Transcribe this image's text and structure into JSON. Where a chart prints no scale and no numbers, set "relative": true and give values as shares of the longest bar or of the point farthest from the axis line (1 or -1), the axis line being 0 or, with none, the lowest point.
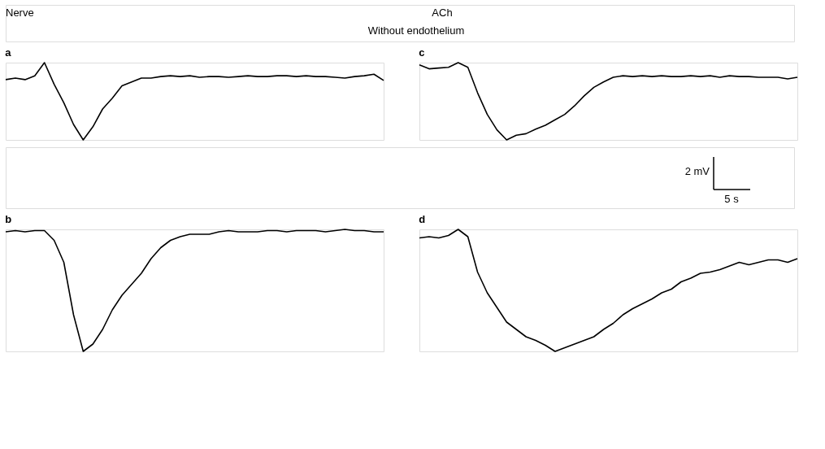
{
  "chart_data": [
    {
      "type": "line",
      "title": "a",
      "relative": true,
      "annotations": [
        "Nerve"
      ],
      "categories": [
        null,
        null,
        null,
        null,
        null,
        null,
        null,
        null,
        null,
        null,
        null,
        null,
        null,
        null,
        null,
        null,
        null,
        null,
        null,
        null,
        null,
        null,
        null,
        null,
        null,
        null,
        null,
        null,
        null,
        null,
        null,
        null,
        null,
        null,
        null,
        null,
        null,
        null,
        null,
        null
      ],
      "series": [
        {
          "color": "#000000",
          "values": [
            0.78,
            0.8,
            0.78,
            0.83,
            1.0,
            0.72,
            0.48,
            0.2,
            0.0,
            0.17,
            0.4,
            0.54,
            0.7,
            0.75,
            0.8,
            0.8,
            0.82,
            0.83,
            0.82,
            0.83,
            0.81,
            0.82,
            0.82,
            0.81,
            0.82,
            0.83,
            0.82,
            0.82,
            0.83,
            0.83,
            0.82,
            0.83,
            0.82,
            0.82,
            0.81,
            0.8,
            0.82,
            0.83,
            0.85,
            0.77
          ]
        }
      ]
    },
    {
      "type": "line",
      "title": "c",
      "relative": true,
      "annotations": [
        "ACh",
        "Without endothelium",
        "2 mV",
        "5 s"
      ],
      "categories": [
        null,
        null,
        null,
        null,
        null,
        null,
        null,
        null,
        null,
        null,
        null,
        null,
        null,
        null,
        null,
        null,
        null,
        null,
        null,
        null,
        null,
        null,
        null,
        null,
        null,
        null,
        null,
        null,
        null,
        null,
        null,
        null,
        null,
        null,
        null,
        null,
        null,
        null,
        null,
        null
      ],
      "series": [
        {
          "color": "#000000",
          "values": [
            0.97,
            0.92,
            0.93,
            0.94,
            1.0,
            0.94,
            0.61,
            0.33,
            0.13,
            0.0,
            0.06,
            0.08,
            0.14,
            0.19,
            0.26,
            0.33,
            0.44,
            0.57,
            0.68,
            0.75,
            0.81,
            0.83,
            0.82,
            0.83,
            0.82,
            0.83,
            0.82,
            0.82,
            0.83,
            0.82,
            0.83,
            0.81,
            0.83,
            0.82,
            0.82,
            0.81,
            0.81,
            0.81,
            0.79,
            0.81
          ]
        }
      ]
    },
    {
      "type": "line",
      "title": "b",
      "relative": true,
      "categories": [
        null,
        null,
        null,
        null,
        null,
        null,
        null,
        null,
        null,
        null,
        null,
        null,
        null,
        null,
        null,
        null,
        null,
        null,
        null,
        null,
        null,
        null,
        null,
        null,
        null,
        null,
        null,
        null,
        null,
        null,
        null,
        null,
        null,
        null,
        null,
        null,
        null,
        null,
        null,
        null
      ],
      "series": [
        {
          "color": "#000000",
          "values": [
            0.98,
            0.99,
            0.98,
            0.99,
            0.99,
            0.91,
            0.73,
            0.3,
            0.0,
            0.06,
            0.18,
            0.34,
            0.46,
            0.55,
            0.64,
            0.76,
            0.85,
            0.91,
            0.94,
            0.96,
            0.96,
            0.96,
            0.98,
            0.99,
            0.98,
            0.98,
            0.98,
            0.99,
            0.99,
            0.98,
            0.99,
            0.99,
            0.99,
            0.98,
            0.99,
            1.0,
            0.99,
            0.99,
            0.98,
            0.98
          ]
        }
      ]
    },
    {
      "type": "line",
      "title": "d",
      "relative": true,
      "categories": [
        null,
        null,
        null,
        null,
        null,
        null,
        null,
        null,
        null,
        null,
        null,
        null,
        null,
        null,
        null,
        null,
        null,
        null,
        null,
        null,
        null,
        null,
        null,
        null,
        null,
        null,
        null,
        null,
        null,
        null,
        null,
        null,
        null,
        null,
        null,
        null,
        null,
        null,
        null,
        null
      ],
      "series": [
        {
          "color": "#000000",
          "values": [
            0.93,
            0.94,
            0.93,
            0.95,
            1.0,
            0.94,
            0.65,
            0.48,
            0.36,
            0.24,
            0.18,
            0.12,
            0.09,
            0.05,
            0.0,
            0.03,
            0.06,
            0.09,
            0.12,
            0.18,
            0.23,
            0.3,
            0.35,
            0.39,
            0.43,
            0.48,
            0.51,
            0.57,
            0.6,
            0.64,
            0.65,
            0.67,
            0.7,
            0.73,
            0.71,
            0.73,
            0.75,
            0.75,
            0.73,
            0.76
          ]
        }
      ]
    }
  ]
}
